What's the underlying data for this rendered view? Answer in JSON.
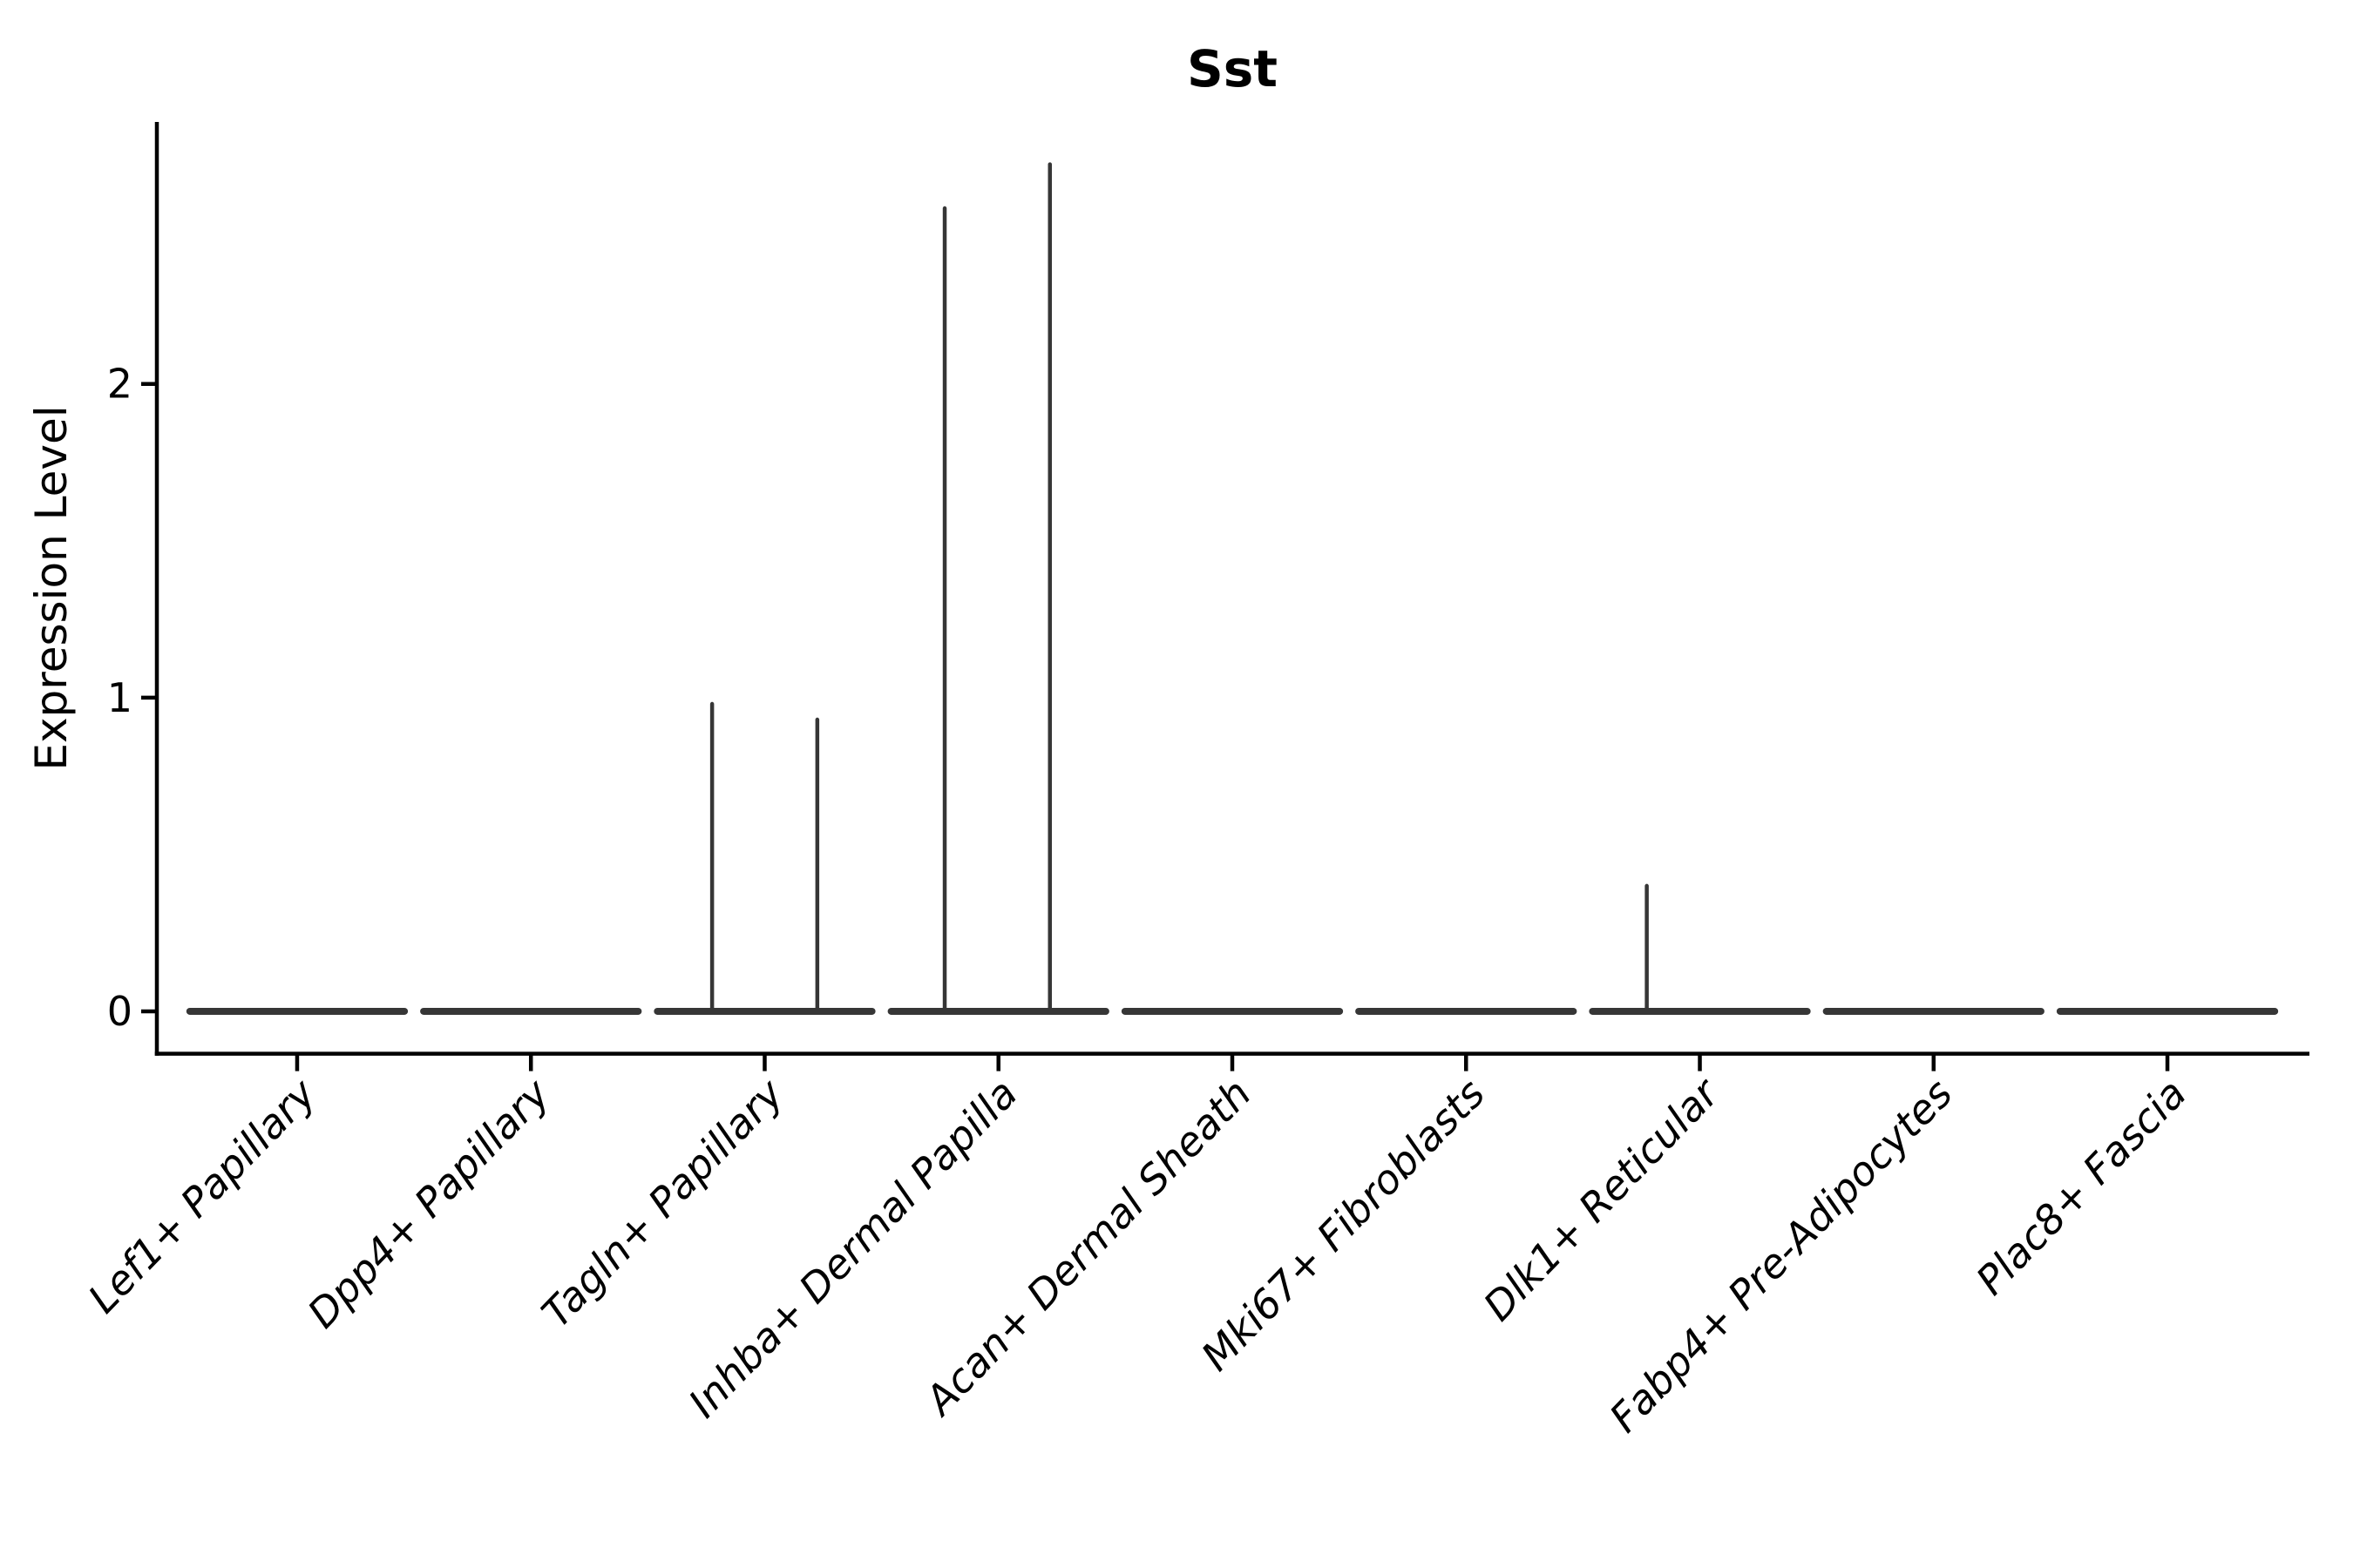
{
  "figure": {
    "title": "Sst",
    "ylabel": "Expression Level"
  },
  "colors": {
    "violin": "#363636",
    "axis": "#000000",
    "text": "#000000",
    "background": "#ffffff"
  },
  "chart_data": {
    "type": "violin",
    "title": "Sst",
    "ylabel": "Expression Level",
    "xlabel": "",
    "grid": false,
    "legend": "none",
    "yticks": [
      0,
      1,
      2
    ],
    "ylim": [
      -0.135,
      2.835
    ],
    "categories": [
      "Lef1+ Papillary",
      "Dpp4+ Papillary",
      "Tagln+ Papillary",
      "Inhba+ Dermal Papilla",
      "Acan+ Dermal Sheath",
      "Mki67+ Fibroblasts",
      "Dlk1+ Reticular",
      "Fabp4+ Pre-Adipocytes",
      "Plac8+ Fascia"
    ],
    "series": [
      {
        "category": "Lef1+ Papillary",
        "baseline": 0,
        "max_expression": 0,
        "spikes": []
      },
      {
        "category": "Dpp4+ Papillary",
        "baseline": 0,
        "max_expression": 0,
        "spikes": []
      },
      {
        "category": "Tagln+ Papillary",
        "baseline": 0,
        "max_expression": 0.98,
        "spikes": [
          {
            "offset": -0.225,
            "value": 0.98
          },
          {
            "offset": 0.225,
            "value": 0.93
          }
        ]
      },
      {
        "category": "Inhba+ Dermal Papilla",
        "baseline": 0,
        "max_expression": 2.7,
        "spikes": [
          {
            "offset": -0.23,
            "value": 2.56
          },
          {
            "offset": 0.22,
            "value": 2.7
          }
        ]
      },
      {
        "category": "Acan+ Dermal Sheath",
        "baseline": 0,
        "max_expression": 0,
        "spikes": []
      },
      {
        "category": "Mki67+ Fibroblasts",
        "baseline": 0,
        "max_expression": 0,
        "spikes": []
      },
      {
        "category": "Dlk1+ Reticular",
        "baseline": 0,
        "max_expression": 0.4,
        "spikes": [
          {
            "offset": -0.227,
            "value": 0.4
          }
        ]
      },
      {
        "category": "Fabp4+ Pre-Adipocytes",
        "baseline": 0,
        "max_expression": 0,
        "spikes": []
      },
      {
        "category": "Plac8+ Fascia",
        "baseline": 0,
        "max_expression": 0,
        "spikes": []
      }
    ]
  }
}
